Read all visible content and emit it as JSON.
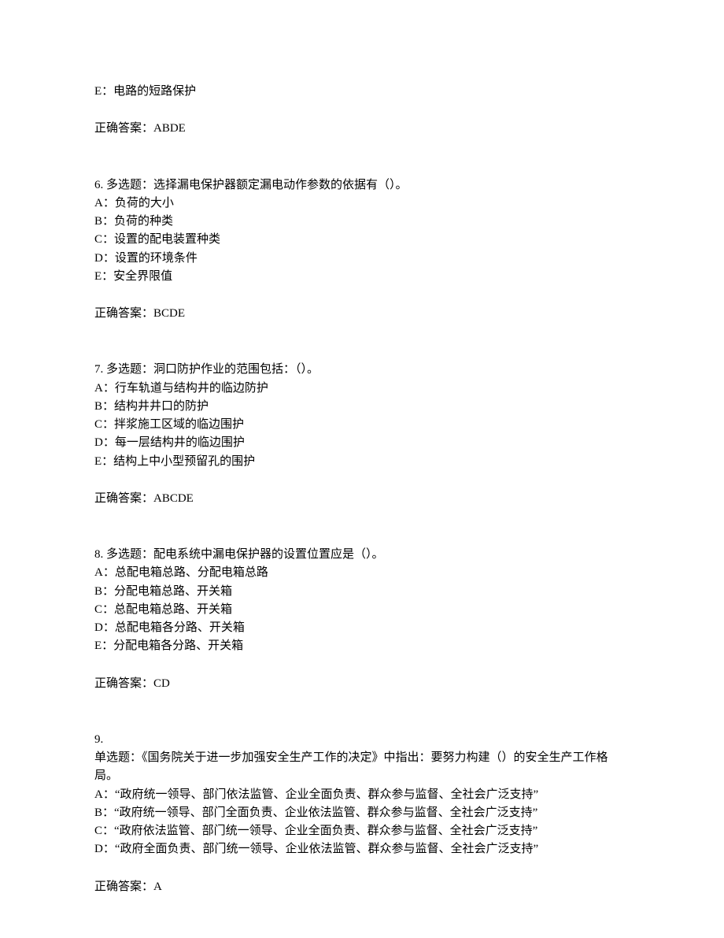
{
  "q5_partial": {
    "option_e": "E：电路的短路保护",
    "answer_label": "正确答案：ABDE"
  },
  "q6": {
    "prompt": "6. 多选题：选择漏电保护器额定漏电动作参数的依据有（）。",
    "option_a": "A：负荷的大小",
    "option_b": "B：负荷的种类",
    "option_c": "C：设置的配电装置种类",
    "option_d": "D：设置的环境条件",
    "option_e": "E：安全界限值",
    "answer_label": "正确答案：BCDE"
  },
  "q7": {
    "prompt": "7. 多选题：洞口防护作业的范围包括：（）。",
    "option_a": "A：行车轨道与结构井的临边防护",
    "option_b": "B：结构井井口的防护",
    "option_c": "C：拌浆施工区域的临边围护",
    "option_d": "D：每一层结构井的临边围护",
    "option_e": "E：结构上中小型预留孔的围护",
    "answer_label": "正确答案：ABCDE"
  },
  "q8": {
    "prompt": "8. 多选题：配电系统中漏电保护器的设置位置应是（）。",
    "option_a": "A：总配电箱总路、分配电箱总路",
    "option_b": "B：分配电箱总路、开关箱",
    "option_c": "C：总配电箱总路、开关箱",
    "option_d": "D：总配电箱各分路、开关箱",
    "option_e": "E：分配电箱各分路、开关箱",
    "answer_label": "正确答案：CD"
  },
  "q9": {
    "number": "9.",
    "prompt": "单选题：《国务院关于进一步加强安全生产工作的决定》中指出：要努力构建（）的安全生产工作格局。",
    "option_a": "A：“政府统一领导、部门依法监管、企业全面负责、群众参与监督、全社会广泛支持”",
    "option_b": "B：“政府统一领导、部门全面负责、企业依法监管、群众参与监督、全社会广泛支持”",
    "option_c": "C：“政府依法监管、部门统一领导、企业全面负责、群众参与监督、全社会广泛支持”",
    "option_d": "D：“政府全面负责、部门统一领导、企业依法监管、群众参与监督、全社会广泛支持”",
    "answer_label": "正确答案：A"
  }
}
